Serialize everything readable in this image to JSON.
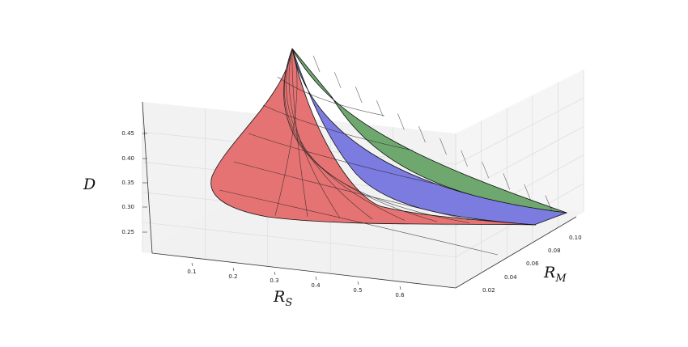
{
  "chart_data": {
    "type": "surface3d",
    "title": "",
    "xlabel": "R",
    "xlabel_sub": "S",
    "ylabel": "R",
    "ylabel_sub": "M",
    "zlabel": "D",
    "x_ticks": [
      "0.1",
      "0.2",
      "0.3",
      "0.4",
      "0.5",
      "0.6"
    ],
    "y_ticks": [
      "0.02",
      "0.04",
      "0.06",
      "0.08",
      "0.10"
    ],
    "z_ticks": [
      "0.25",
      "0.30",
      "0.35",
      "0.40",
      "0.45"
    ],
    "x_range": [
      0.0,
      0.65
    ],
    "y_range": [
      0.0,
      0.11
    ],
    "z_range": [
      0.22,
      0.48
    ],
    "grid": true,
    "series": [
      {
        "color": "#e57373"
      },
      {
        "color": "#7b7be0"
      },
      {
        "color": "#6fa86f"
      }
    ]
  }
}
